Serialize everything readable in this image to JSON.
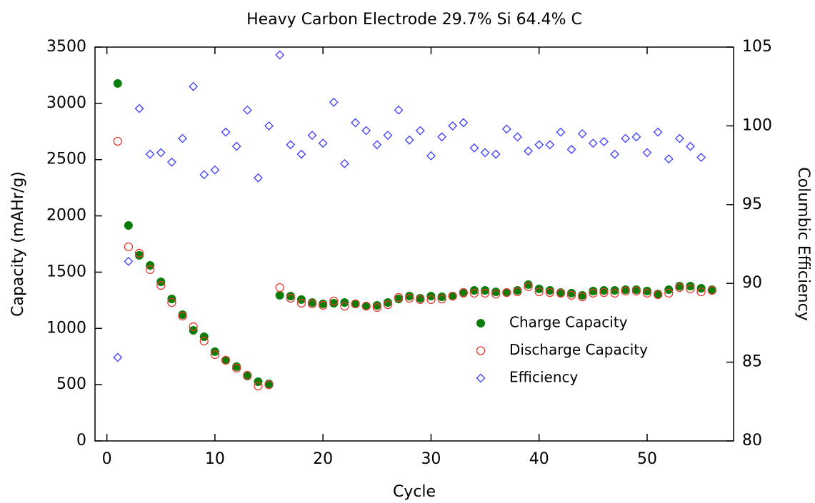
{
  "chart_data": {
    "type": "scatter",
    "title": "Heavy Carbon Electrode 29.7% Si 64.4% C",
    "x_label": "Cycle",
    "y_label": "Capacity (mAHr/g)",
    "y2_label": "Columbic Efficiency",
    "x": [
      1,
      2,
      3,
      4,
      5,
      6,
      7,
      8,
      9,
      10,
      11,
      12,
      13,
      14,
      15,
      16,
      17,
      18,
      19,
      20,
      21,
      22,
      23,
      24,
      25,
      26,
      27,
      28,
      29,
      30,
      31,
      32,
      33,
      34,
      35,
      36,
      37,
      38,
      39,
      40,
      41,
      42,
      43,
      44,
      45,
      46,
      47,
      48,
      49,
      50,
      51,
      52,
      53,
      54,
      55,
      56
    ],
    "xlim": [
      -1.1,
      58
    ],
    "xticks": [
      0,
      10,
      20,
      30,
      40,
      50
    ],
    "ylim": [
      0,
      3500
    ],
    "yticks": [
      0,
      500,
      1000,
      1500,
      2000,
      2500,
      3000,
      3500
    ],
    "y2lim": [
      80,
      105
    ],
    "y2ticks": [
      80,
      85,
      90,
      95,
      100,
      105
    ],
    "legend": "center-right",
    "series": [
      {
        "name": "Charge Capacity",
        "color": "#0a7d0a",
        "marker": "filled-circle",
        "values": [
          3177,
          1915,
          1649,
          1560,
          1414,
          1262,
          1122,
          983,
          926,
          793,
          717,
          660,
          577,
          526,
          507,
          1294,
          1287,
          1256,
          1230,
          1218,
          1224,
          1230,
          1218,
          1198,
          1205,
          1230,
          1262,
          1287,
          1268,
          1287,
          1281,
          1287,
          1313,
          1338,
          1338,
          1325,
          1319,
          1338,
          1389,
          1351,
          1338,
          1319,
          1313,
          1294,
          1332,
          1338,
          1338,
          1344,
          1344,
          1332,
          1306,
          1344,
          1376,
          1376,
          1357,
          1344
        ]
      },
      {
        "name": "Discharge Capacity",
        "color": "#e8382f",
        "marker": "open-circle",
        "values": [
          2663,
          1725,
          1668,
          1522,
          1382,
          1230,
          1110,
          1015,
          888,
          767,
          717,
          647,
          583,
          488,
          500,
          1363,
          1268,
          1224,
          1218,
          1205,
          1243,
          1198,
          1218,
          1198,
          1186,
          1211,
          1275,
          1268,
          1256,
          1256,
          1262,
          1287,
          1319,
          1313,
          1313,
          1306,
          1319,
          1325,
          1370,
          1325,
          1319,
          1313,
          1294,
          1281,
          1313,
          1319,
          1313,
          1332,
          1332,
          1313,
          1300,
          1313,
          1363,
          1351,
          1325,
          1338
        ]
      },
      {
        "name": "Efficiency",
        "color": "#3a3aff",
        "marker": "open-diamond",
        "axis": "y2",
        "values": [
          85.3,
          91.4,
          101.1,
          98.2,
          98.3,
          97.7,
          99.2,
          102.5,
          96.9,
          97.2,
          99.6,
          98.7,
          101.0,
          96.7,
          100.0,
          104.5,
          98.8,
          98.2,
          99.4,
          98.9,
          101.5,
          97.6,
          100.2,
          99.7,
          98.8,
          99.4,
          101.0,
          99.1,
          99.7,
          98.1,
          99.3,
          100.0,
          100.2,
          98.6,
          98.3,
          98.2,
          99.8,
          99.3,
          98.4,
          98.8,
          98.8,
          99.6,
          98.5,
          99.5,
          98.9,
          99.0,
          98.2,
          99.2,
          99.3,
          98.3,
          99.6,
          97.9,
          99.2,
          98.7,
          98.0,
          null
        ]
      }
    ]
  }
}
